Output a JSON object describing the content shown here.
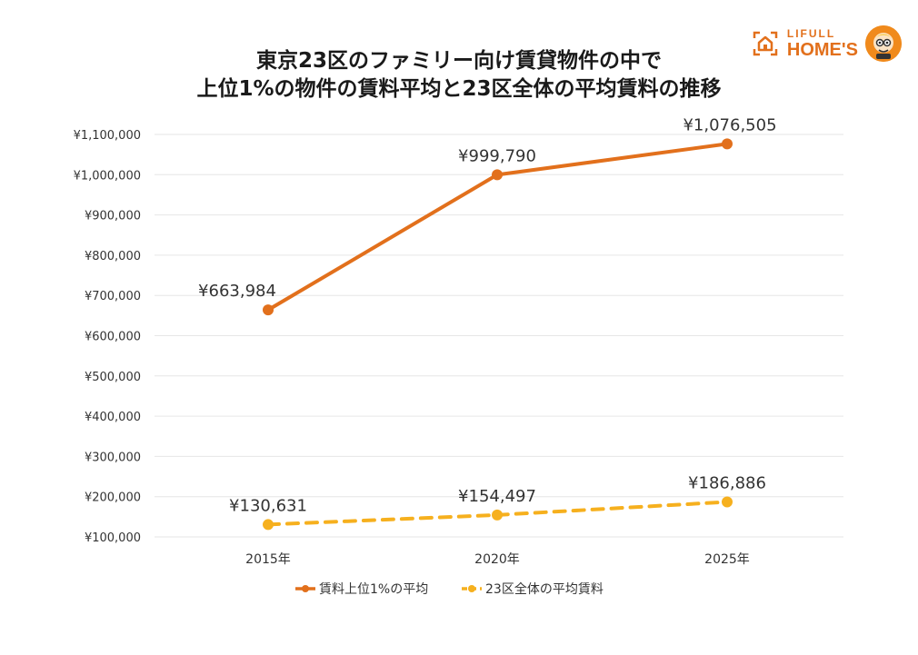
{
  "header": {
    "title_line1": "東京23区のファミリー向け賃貸物件の中で",
    "title_line2": "上位1%の物件の賃料平均と23区全体の平均賃料の推移"
  },
  "logo": {
    "top_text": "LIFULL",
    "bottom_text": "HOME'S",
    "icon": "house-icon",
    "mascot_icon": "mascot-icon",
    "brand_color": "#e2701c"
  },
  "chart_data": {
    "type": "line",
    "title": "東京23区のファミリー向け賃貸物件の中で 上位1%の物件の賃料平均と23区全体の平均賃料の推移",
    "categories": [
      "2015年",
      "2020年",
      "2025年"
    ],
    "y_ticks": [
      "¥100,000",
      "¥200,000",
      "¥300,000",
      "¥400,000",
      "¥500,000",
      "¥600,000",
      "¥700,000",
      "¥800,000",
      "¥900,000",
      "¥1,000,000",
      "¥1,100,000"
    ],
    "ylim": [
      100000,
      1100000
    ],
    "grid": true,
    "legend_position": "bottom",
    "series": [
      {
        "name": "賃料上位1%の平均",
        "values": [
          663984,
          999790,
          1076505
        ],
        "labels": [
          "¥663,984",
          "¥999,790",
          "¥1,076,505"
        ],
        "color": "#e2701c",
        "style": "solid"
      },
      {
        "name": "23区全体の平均賃料",
        "values": [
          130631,
          154497,
          186886
        ],
        "labels": [
          "¥130,631",
          "¥154,497",
          "¥186,886"
        ],
        "color": "#f6b01e",
        "style": "dashed"
      }
    ]
  }
}
